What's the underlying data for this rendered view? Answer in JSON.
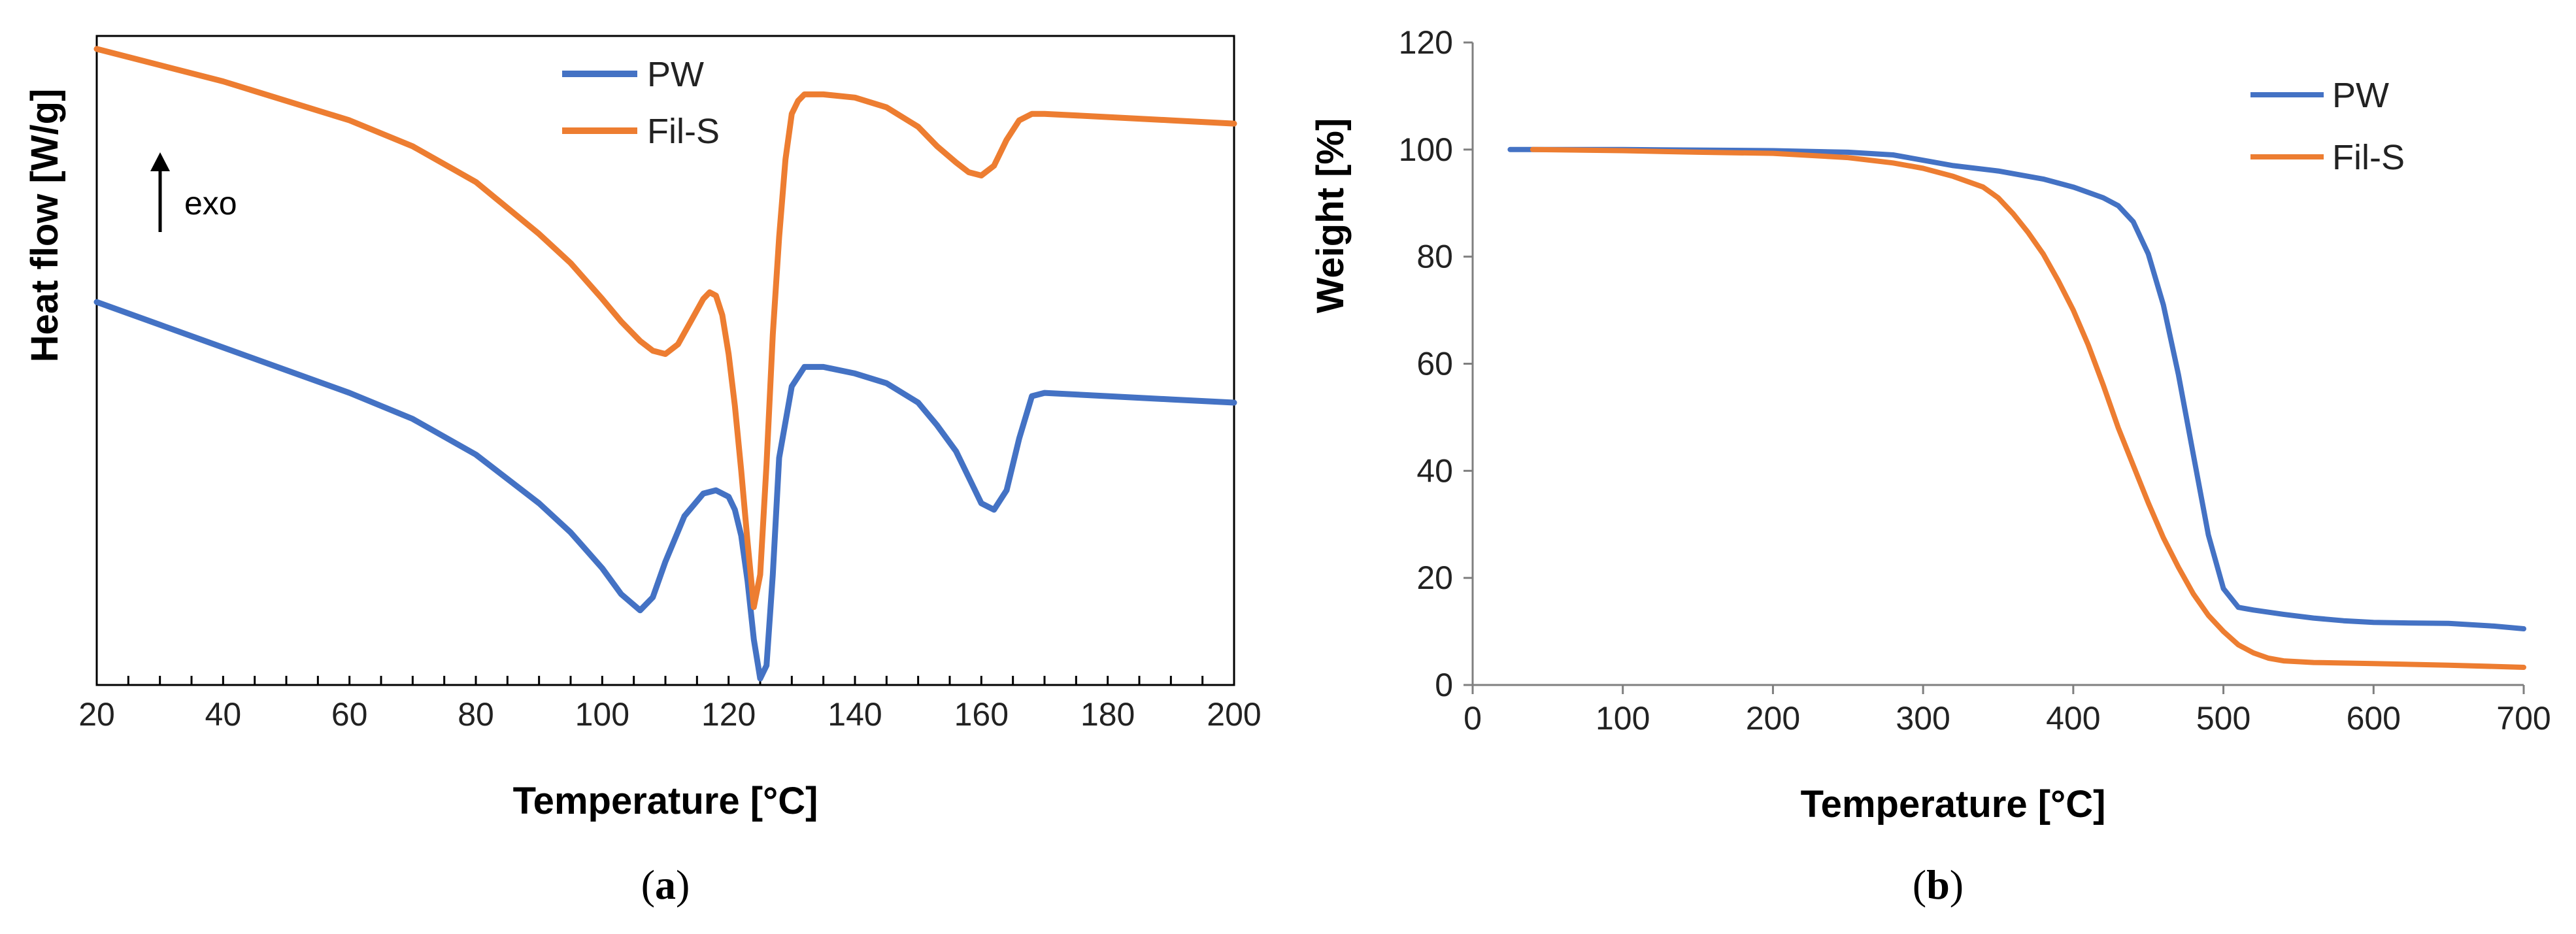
{
  "figure": {
    "panel_a_label": "a",
    "panel_b_label": "b"
  },
  "chart_data": [
    {
      "id": "a",
      "type": "line",
      "title": "",
      "xlabel": "Temperature [°C]",
      "ylabel": "Heat flow [W/g]",
      "xlim": [
        20,
        200
      ],
      "ylim": [
        0,
        100
      ],
      "x_ticks": [
        20,
        40,
        60,
        80,
        100,
        120,
        140,
        160,
        180,
        200
      ],
      "x_tick_labels": [
        "20",
        "40",
        "60",
        "80",
        "100",
        "120",
        "140",
        "160",
        "180",
        "200"
      ],
      "y_tick_labels_shown": false,
      "annotation": "exo",
      "legend_position": "top-center",
      "series": [
        {
          "name": "PW",
          "color": "#4472C4",
          "x": [
            20,
            30,
            40,
            50,
            60,
            70,
            80,
            90,
            95,
            100,
            103,
            106,
            108,
            110,
            113,
            116,
            118,
            120,
            121,
            122,
            123,
            124,
            125,
            126,
            127,
            128,
            130,
            132,
            135,
            140,
            145,
            150,
            153,
            156,
            158,
            160,
            162,
            164,
            166,
            168,
            170,
            180,
            190,
            200
          ],
          "y": [
            59,
            55.5,
            52,
            48.5,
            45,
            41,
            35.5,
            28,
            23.5,
            18,
            14,
            11.5,
            13.5,
            19,
            26,
            29.5,
            30,
            29,
            27,
            23,
            16,
            7,
            1,
            3,
            17,
            35,
            46,
            49,
            49,
            48,
            46.5,
            43.5,
            40,
            36,
            32,
            28,
            27,
            30,
            38,
            44.5,
            45,
            44.5,
            44,
            43.5
          ]
        },
        {
          "name": "Fil-S",
          "color": "#ED7D31",
          "x": [
            20,
            30,
            40,
            50,
            60,
            70,
            80,
            90,
            95,
            100,
            103,
            106,
            108,
            110,
            112,
            114,
            116,
            117,
            118,
            119,
            120,
            121,
            122,
            123,
            124,
            125,
            126,
            127,
            128,
            129,
            130,
            131,
            132,
            135,
            140,
            145,
            150,
            153,
            156,
            158,
            160,
            162,
            164,
            166,
            168,
            170,
            180,
            190,
            200
          ],
          "y": [
            98,
            95.5,
            93,
            90,
            87,
            83,
            77.5,
            69.5,
            65,
            59.5,
            56,
            53,
            51.5,
            51,
            52.5,
            56,
            59.5,
            60.5,
            60,
            57,
            51,
            43,
            33,
            22,
            12,
            17,
            34,
            54,
            69,
            81,
            88,
            90,
            91,
            91,
            90.5,
            89,
            86,
            83,
            80.5,
            79,
            78.5,
            80,
            84,
            87,
            88,
            88,
            87.5,
            87,
            86.5
          ]
        }
      ]
    },
    {
      "id": "b",
      "type": "line",
      "title": "",
      "xlabel": "Temperature [°C]",
      "ylabel": "Weight [%]",
      "xlim": [
        0,
        700
      ],
      "ylim": [
        0,
        120
      ],
      "x_ticks": [
        0,
        100,
        200,
        300,
        400,
        500,
        600,
        700
      ],
      "x_tick_labels": [
        "0",
        "100",
        "200",
        "300",
        "400",
        "500",
        "600",
        "700"
      ],
      "y_ticks": [
        0,
        20,
        40,
        60,
        80,
        100,
        120
      ],
      "y_tick_labels": [
        "0",
        "20",
        "40",
        "60",
        "80",
        "100",
        "120"
      ],
      "legend_position": "top-right",
      "series": [
        {
          "name": "PW",
          "color": "#4472C4",
          "x": [
            25,
            40,
            100,
            200,
            250,
            280,
            300,
            320,
            350,
            380,
            400,
            420,
            430,
            440,
            450,
            460,
            470,
            480,
            490,
            500,
            510,
            520,
            540,
            560,
            580,
            600,
            620,
            650,
            680,
            700
          ],
          "y": [
            100,
            100,
            100,
            99.8,
            99.5,
            99,
            98,
            97,
            96,
            94.5,
            93,
            91,
            89.5,
            86.5,
            80.5,
            71,
            58,
            43,
            28,
            18,
            14.5,
            14,
            13.2,
            12.5,
            12,
            11.7,
            11.6,
            11.5,
            11,
            10.5
          ]
        },
        {
          "name": "Fil-S",
          "color": "#ED7D31",
          "x": [
            40,
            100,
            150,
            200,
            250,
            280,
            300,
            320,
            340,
            350,
            360,
            370,
            380,
            390,
            400,
            410,
            420,
            430,
            440,
            450,
            460,
            470,
            480,
            490,
            500,
            510,
            520,
            530,
            540,
            560,
            600,
            650,
            700
          ],
          "y": [
            100,
            99.8,
            99.5,
            99.3,
            98.5,
            97.5,
            96.5,
            95,
            93,
            91,
            88,
            84.5,
            80.5,
            75.5,
            70,
            63.5,
            56,
            48,
            41,
            34,
            27.5,
            22,
            17,
            13,
            10,
            7.5,
            6,
            5,
            4.5,
            4.2,
            4,
            3.7,
            3.3
          ]
        }
      ]
    }
  ]
}
